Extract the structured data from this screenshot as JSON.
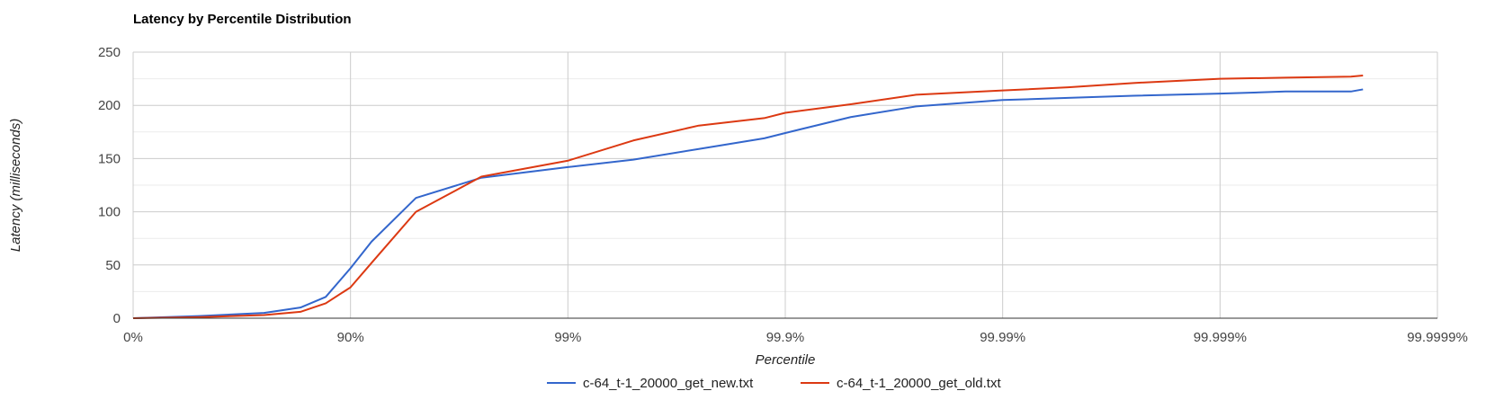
{
  "chart_data": {
    "type": "line",
    "title": "Latency by Percentile Distribution",
    "xlabel": "Percentile",
    "ylabel": "Latency (milliseconds)",
    "x_scale": "log of 1/(1 - percentile)",
    "x_tick_labels": [
      "0%",
      "90%",
      "99%",
      "99.9%",
      "99.99%",
      "99.999%",
      "99.9999%"
    ],
    "xlim": [
      "0%",
      "99.9999%"
    ],
    "y_ticks": [
      0,
      50,
      100,
      150,
      200,
      250
    ],
    "ylim": [
      0,
      250
    ],
    "grid": true,
    "legend_position": "bottom",
    "series": [
      {
        "name": "c-64_t-1_20000_get_new.txt",
        "color": "#3366cc",
        "points": [
          [
            "0%",
            0
          ],
          [
            "50%",
            2
          ],
          [
            "75%",
            5
          ],
          [
            "83%",
            10
          ],
          [
            "87%",
            20
          ],
          [
            "90%",
            47
          ],
          [
            "92%",
            72
          ],
          [
            "95%",
            113
          ],
          [
            "97.5%",
            132
          ],
          [
            "99%",
            142
          ],
          [
            "99.5%",
            149
          ],
          [
            "99.75%",
            159
          ],
          [
            "99.875%",
            169
          ],
          [
            "99.9%",
            174
          ],
          [
            "99.95%",
            189
          ],
          [
            "99.975%",
            199
          ],
          [
            "99.99%",
            205
          ],
          [
            "99.995%",
            207
          ],
          [
            "99.9975%",
            209
          ],
          [
            "99.999%",
            211
          ],
          [
            "99.9995%",
            213
          ],
          [
            "99.99975%",
            213
          ],
          [
            "99.99978%",
            215
          ]
        ]
      },
      {
        "name": "c-64_t-1_20000_get_old.txt",
        "color": "#dc3912",
        "points": [
          [
            "0%",
            0
          ],
          [
            "50%",
            1
          ],
          [
            "75%",
            3
          ],
          [
            "83%",
            6
          ],
          [
            "87%",
            14
          ],
          [
            "90%",
            29
          ],
          [
            "92%",
            52
          ],
          [
            "95%",
            100
          ],
          [
            "97.5%",
            133
          ],
          [
            "99%",
            148
          ],
          [
            "99.5%",
            167
          ],
          [
            "99.75%",
            181
          ],
          [
            "99.875%",
            188
          ],
          [
            "99.9%",
            193
          ],
          [
            "99.95%",
            201
          ],
          [
            "99.975%",
            210
          ],
          [
            "99.99%",
            214
          ],
          [
            "99.995%",
            217
          ],
          [
            "99.9975%",
            221
          ],
          [
            "99.999%",
            225
          ],
          [
            "99.9995%",
            226
          ],
          [
            "99.99975%",
            227
          ],
          [
            "99.99978%",
            228
          ]
        ]
      }
    ]
  }
}
